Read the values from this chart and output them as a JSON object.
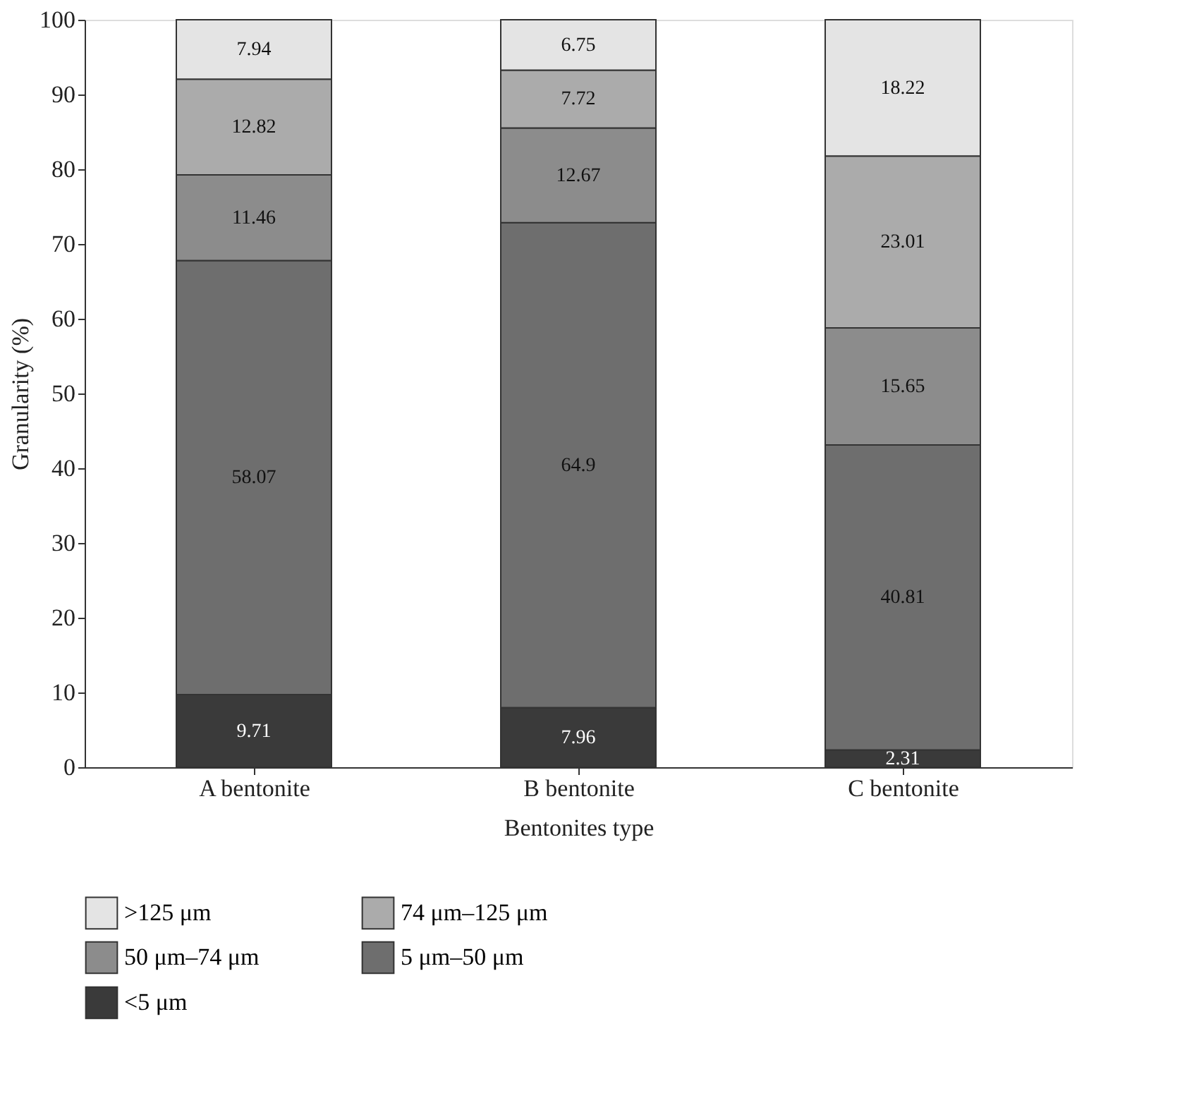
{
  "chart_data": {
    "type": "bar",
    "stacked": true,
    "xlabel": "Bentonites type",
    "ylabel": "Granularity (%)",
    "categories": [
      "A bentonite",
      "B bentonite",
      "C bentonite"
    ],
    "series": [
      {
        "name": "<5 μm",
        "color": "#3a3a3a",
        "values": [
          9.71,
          7.96,
          2.31
        ]
      },
      {
        "name": "5 μm–50 μm",
        "color": "#6e6e6e",
        "values": [
          58.07,
          64.9,
          40.81
        ]
      },
      {
        "name": "50 μm–74 μm",
        "color": "#8c8c8c",
        "values": [
          11.46,
          12.67,
          15.65
        ]
      },
      {
        "name": "74 μm–125 μm",
        "color": "#ababab",
        "values": [
          12.82,
          7.72,
          23.01
        ]
      },
      {
        "name": ">125 μm",
        "color": "#e4e4e4",
        "values": [
          7.94,
          6.75,
          18.22
        ]
      }
    ],
    "ylim": [
      0,
      100
    ],
    "yticks": [
      0,
      10,
      20,
      30,
      40,
      50,
      60,
      70,
      80,
      90,
      100
    ],
    "data_labels": true,
    "legend": "bottom",
    "grid": false
  }
}
